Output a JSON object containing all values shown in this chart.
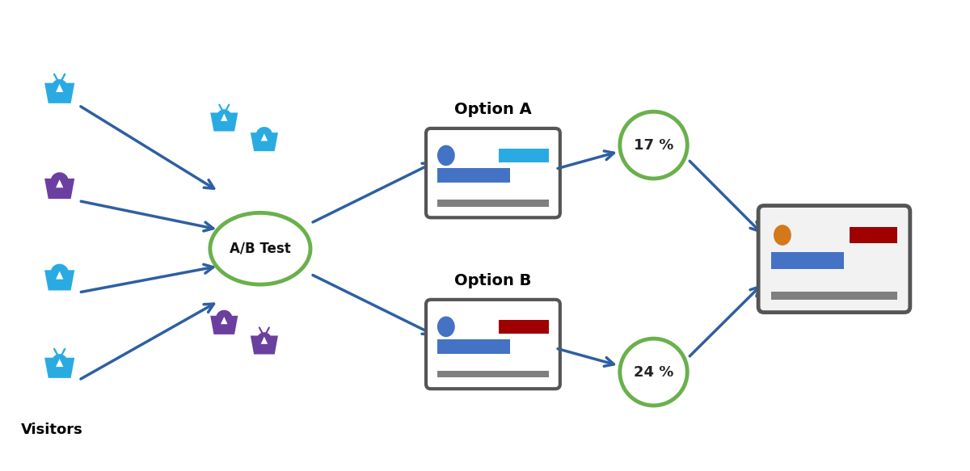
{
  "bg_color": "#ffffff",
  "visitors_label": "Visitors",
  "ab_test_label": "A/B Test",
  "option_a_label": "Option A",
  "option_b_label": "Option B",
  "pct_a": "17 %",
  "pct_b": "24 %",
  "blue_person": "#29ABE2",
  "purple_person": "#6B3FA0",
  "green_circle_color": "#6ab04c",
  "arrow_color": "#2E5FA3",
  "card_border_color": "#555555",
  "card_bg": "#ffffff",
  "blue_oval_color": "#4472C4",
  "cyan_rect_color": "#29ABE2",
  "red_rect_color": "#A00000",
  "orange_circle_color": "#D4781A",
  "gray_bar_color": "#7F7F7F",
  "mid_blue": "#4472C4"
}
